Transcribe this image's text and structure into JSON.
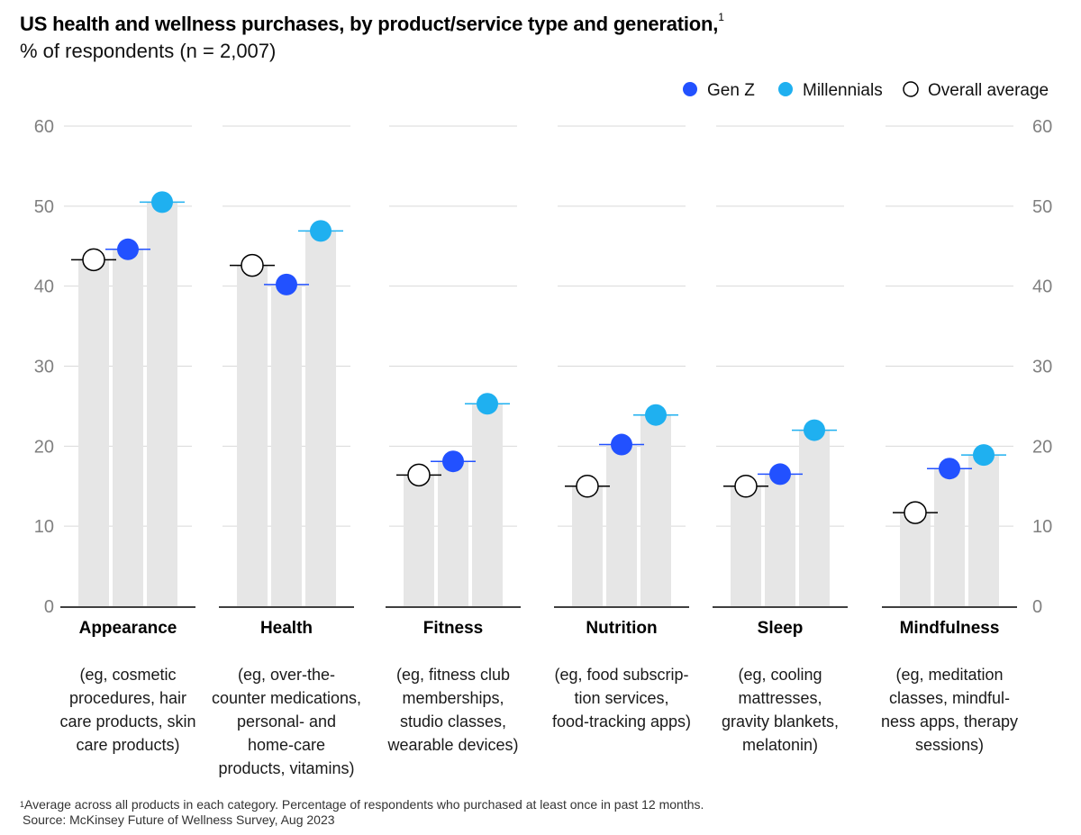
{
  "title": "US health and wellness purchases, by product/service type and generation,",
  "title_footnote_marker": "1",
  "subtitle": "% of respondents (n = 2,007)",
  "footnote_marker": "1",
  "footnote": "Average across all products in each category. Percentage of respondents who purchased at least once in past 12 months.",
  "source": "Source: McKinsey Future of Wellness Survey, Aug 2023",
  "colors": {
    "gen_z": "#2251ff",
    "millennials": "#1fb0f0",
    "overall": "#ffffff",
    "bar": "#e6e6e6",
    "grid": "#d9d9d9",
    "axis_text": "#808080"
  },
  "chart_data": {
    "type": "bar",
    "ylim": [
      0,
      60
    ],
    "yticks": [
      0,
      10,
      20,
      30,
      40,
      50,
      60
    ],
    "grid": true,
    "legend_position": "top-right",
    "series": [
      {
        "name": "Overall average",
        "key": "overall",
        "values": [
          43.3,
          42.6,
          16.4,
          15.0,
          15.0,
          11.7
        ]
      },
      {
        "name": "Gen Z",
        "key": "gen_z",
        "values": [
          44.6,
          40.2,
          18.1,
          20.2,
          16.5,
          17.2
        ]
      },
      {
        "name": "Millennials",
        "key": "millennials",
        "values": [
          50.5,
          46.9,
          25.3,
          23.9,
          22.0,
          18.9
        ]
      }
    ],
    "legend": [
      {
        "name": "Gen Z",
        "key": "gen_z"
      },
      {
        "name": "Millennials",
        "key": "millennials"
      },
      {
        "name": "Overall average",
        "key": "overall"
      }
    ],
    "categories": [
      {
        "name": "Appearance",
        "desc": [
          "(eg, cosmetic",
          "procedures, hair",
          "care products, skin",
          "care products)"
        ]
      },
      {
        "name": "Health",
        "desc": [
          "(eg, over-the-",
          "counter medications,",
          "personal- and",
          "home-care",
          "products, vitamins)"
        ]
      },
      {
        "name": "Fitness",
        "desc": [
          "(eg, fitness club",
          "memberships,",
          "studio classes,",
          "wearable devices)"
        ]
      },
      {
        "name": "Nutrition",
        "desc": [
          "(eg, food subscrip-",
          "tion services,",
          "food-tracking apps)"
        ]
      },
      {
        "name": "Sleep",
        "desc": [
          "(eg, cooling",
          "mattresses,",
          "gravity blankets,",
          "melatonin)"
        ]
      },
      {
        "name": "Mindfulness",
        "desc": [
          "(eg, meditation",
          "classes, mindful-",
          "ness apps, therapy",
          "sessions)"
        ]
      }
    ]
  }
}
